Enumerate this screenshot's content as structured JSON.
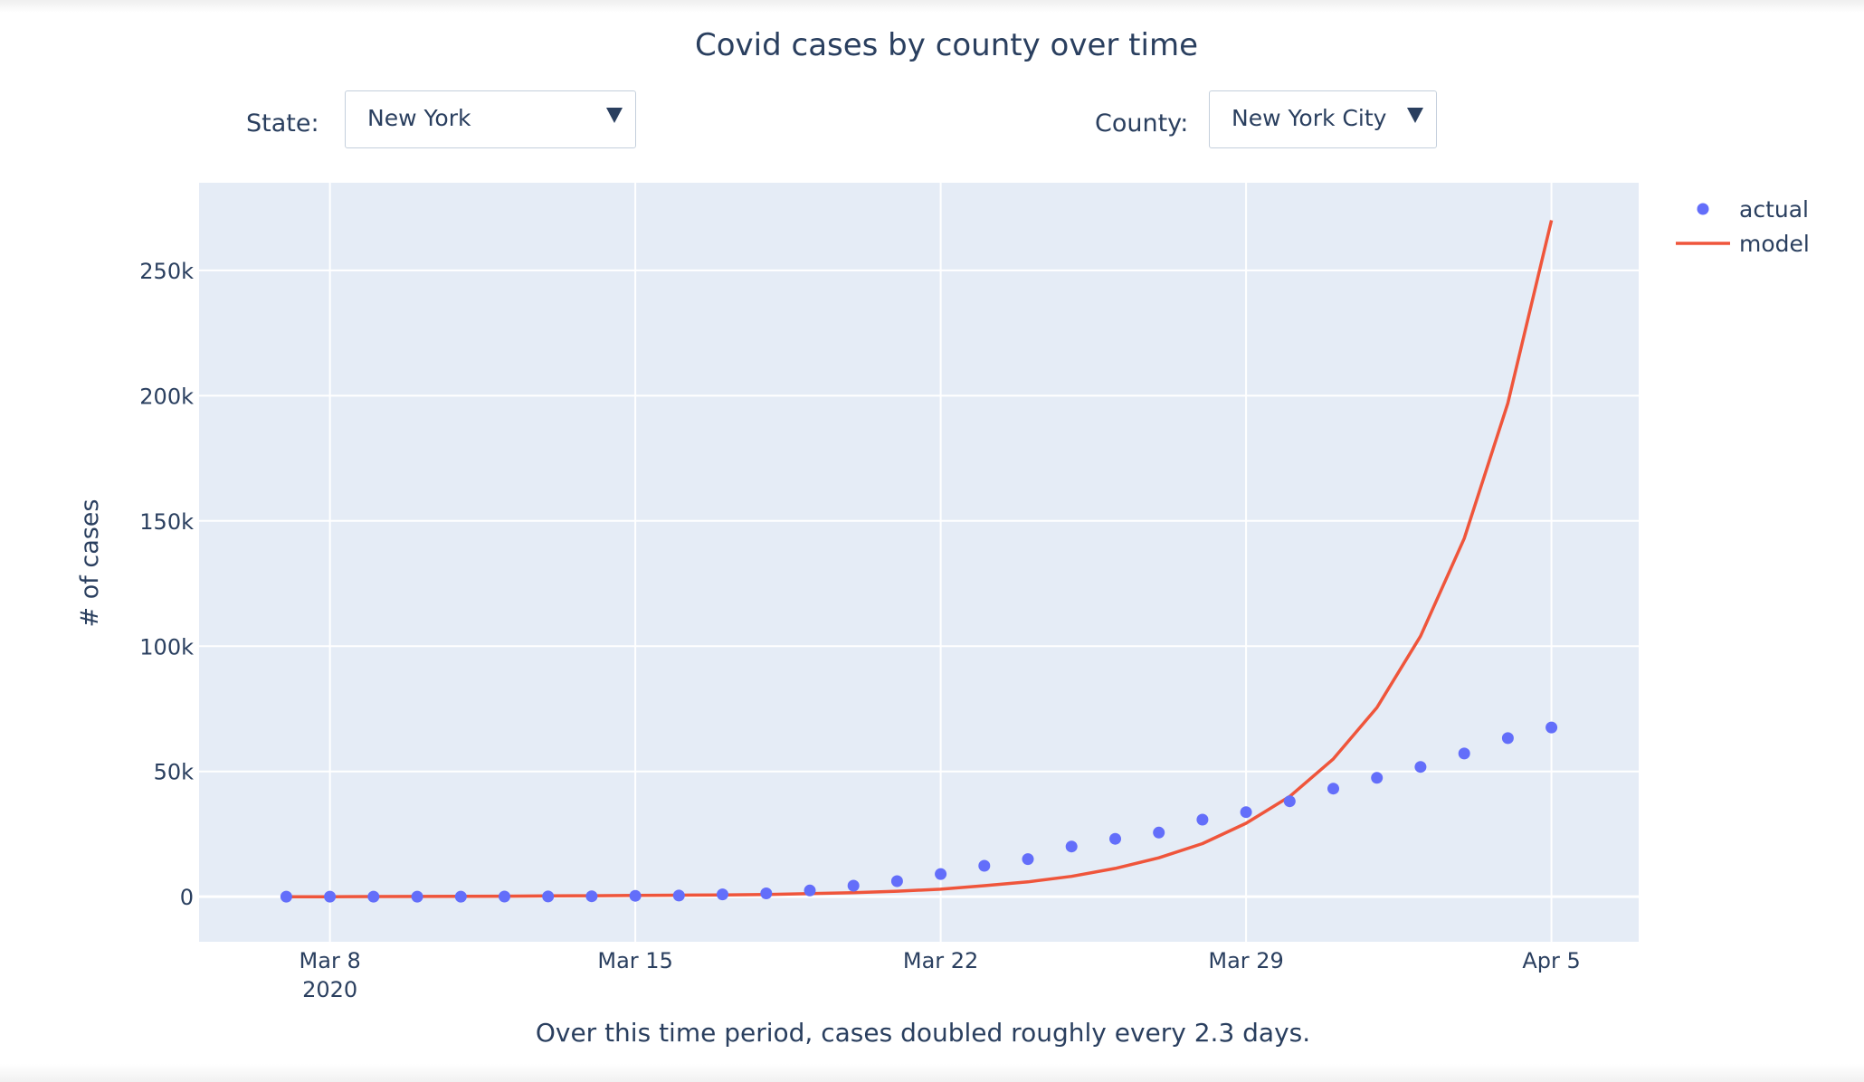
{
  "title": "Covid cases by county over time",
  "controls": {
    "state_label": "State:",
    "state_value": "New York",
    "county_label": "County:",
    "county_value": "New York City",
    "dropdown_icon": "triangle-down-icon"
  },
  "caption": "Over this time period, cases doubled roughly every 2.3 days.",
  "colors": {
    "plot_background": "#e5ecf6",
    "actual": "#636efa",
    "model": "#ef553b",
    "text": "#2a3f5f"
  },
  "chart_data": {
    "type": "scatter",
    "title": "Covid cases by county over time",
    "ylabel": "# of cases",
    "xlabel": "",
    "x_ticks": [
      {
        "date": "2020-03-08",
        "label": "Mar 8",
        "sublabel": "2020"
      },
      {
        "date": "2020-03-15",
        "label": "Mar 15"
      },
      {
        "date": "2020-03-22",
        "label": "Mar 22"
      },
      {
        "date": "2020-03-29",
        "label": "Mar 29"
      },
      {
        "date": "2020-04-05",
        "label": "Apr 5"
      }
    ],
    "y_ticks": [
      {
        "value": 0,
        "label": "0"
      },
      {
        "value": 50000,
        "label": "50k"
      },
      {
        "value": 100000,
        "label": "100k"
      },
      {
        "value": 150000,
        "label": "150k"
      },
      {
        "value": 200000,
        "label": "200k"
      },
      {
        "value": 250000,
        "label": "250k"
      }
    ],
    "xlim": [
      "2020-03-05",
      "2020-04-07"
    ],
    "ylim": [
      -18000,
      285000
    ],
    "grid": true,
    "legend_placement": "top-right",
    "series": [
      {
        "name": "actual",
        "mode": "markers",
        "x": [
          "2020-03-07",
          "2020-03-08",
          "2020-03-09",
          "2020-03-10",
          "2020-03-11",
          "2020-03-12",
          "2020-03-13",
          "2020-03-14",
          "2020-03-15",
          "2020-03-16",
          "2020-03-17",
          "2020-03-18",
          "2020-03-19",
          "2020-03-20",
          "2020-03-21",
          "2020-03-22",
          "2020-03-23",
          "2020-03-24",
          "2020-03-25",
          "2020-03-26",
          "2020-03-27",
          "2020-03-28",
          "2020-03-29",
          "2020-03-30",
          "2020-03-31",
          "2020-04-01",
          "2020-04-02",
          "2020-04-03",
          "2020-04-04",
          "2020-04-05"
        ],
        "y": [
          12,
          14,
          20,
          25,
          36,
          53,
          95,
          154,
          329,
          463,
          923,
          1339,
          2469,
          4408,
          6211,
          9045,
          12339,
          15000,
          20011,
          23112,
          25573,
          30765,
          33768,
          38087,
          43139,
          47439,
          51809,
          57159,
          63306,
          67552
        ]
      },
      {
        "name": "model",
        "mode": "lines",
        "x": [
          "2020-03-07",
          "2020-03-08",
          "2020-03-09",
          "2020-03-10",
          "2020-03-11",
          "2020-03-12",
          "2020-03-13",
          "2020-03-14",
          "2020-03-15",
          "2020-03-16",
          "2020-03-17",
          "2020-03-18",
          "2020-03-19",
          "2020-03-20",
          "2020-03-21",
          "2020-03-22",
          "2020-03-23",
          "2020-03-24",
          "2020-03-25",
          "2020-03-26",
          "2020-03-27",
          "2020-03-28",
          "2020-03-29",
          "2020-03-30",
          "2020-03-31",
          "2020-04-01",
          "2020-04-02",
          "2020-04-03",
          "2020-04-04",
          "2020-04-05"
        ],
        "y": [
          0,
          0,
          50,
          100,
          150,
          200,
          300,
          400,
          500,
          600,
          700,
          900,
          1200,
          1600,
          2200,
          3000,
          4400,
          5900,
          8100,
          11300,
          15500,
          21200,
          29300,
          40000,
          55000,
          75500,
          104000,
          143000,
          197000,
          270000
        ]
      }
    ]
  }
}
